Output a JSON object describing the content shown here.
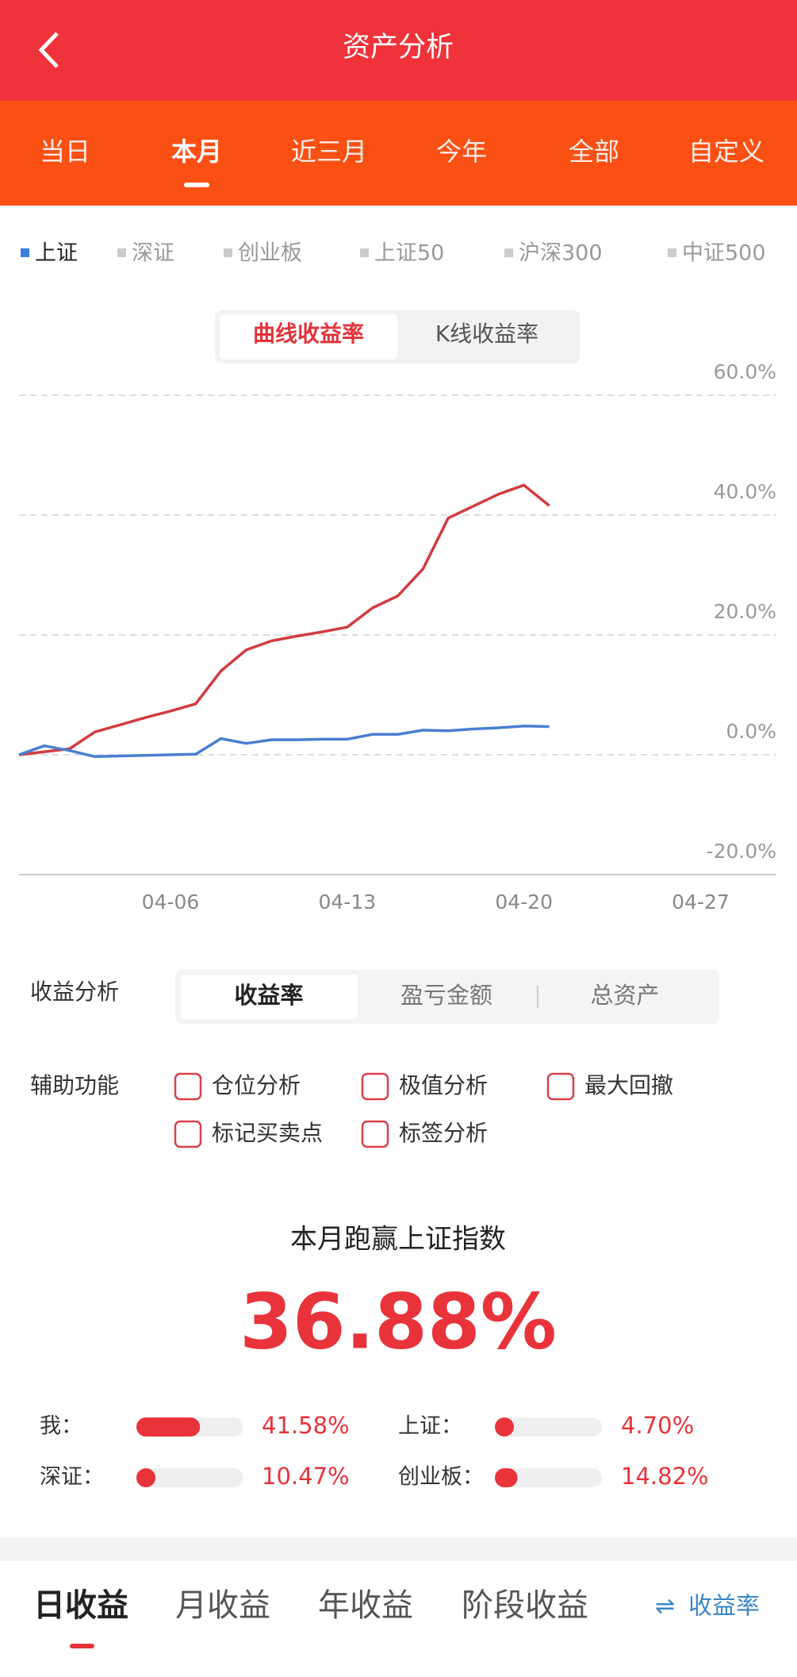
{
  "header": {
    "title": "资产分析"
  },
  "period_tabs": [
    "当日",
    "本月",
    "近三月",
    "今年",
    "全部",
    "自定义"
  ],
  "index_tabs": [
    "上证",
    "深证",
    "创业板",
    "上证50",
    "沪深300",
    "中证500"
  ],
  "chart_modes": [
    "曲线收益率",
    "K线收益率"
  ],
  "chart_data": {
    "type": "line",
    "x": [
      "03-31",
      "04-01",
      "04-02",
      "04-03",
      "04-04",
      "04-05",
      "04-06",
      "04-07",
      "04-08",
      "04-09",
      "04-10",
      "04-11",
      "04-12",
      "04-13",
      "04-14",
      "04-15",
      "04-16",
      "04-17",
      "04-18",
      "04-19",
      "04-20",
      "04-21"
    ],
    "series": [
      {
        "color": "#d23b3f",
        "values": [
          0,
          0.5,
          1,
          3.8,
          5,
          6.2,
          7.3,
          8.5,
          14,
          17.5,
          19,
          19.8,
          20.5,
          21.3,
          24.5,
          26.5,
          31,
          39.5,
          41.5,
          43.5,
          45,
          41.58
        ]
      },
      {
        "color": "#4a7fd0",
        "values": [
          0,
          1.5,
          0.7,
          -0.3,
          -0.2,
          -0.1,
          0,
          0.1,
          2.7,
          1.9,
          2.5,
          2.5,
          2.6,
          2.6,
          3.4,
          3.4,
          4.1,
          4,
          4.3,
          4.5,
          4.8,
          4.7
        ]
      }
    ],
    "xlim": [
      "03-31",
      "04-30"
    ],
    "xticks": [
      "04-06",
      "04-13",
      "04-20",
      "04-27"
    ],
    "ylim": [
      -20,
      60
    ],
    "yticks": [
      {
        "value": -20,
        "label": "-20.0%"
      },
      {
        "value": 0,
        "label": "0.0%"
      },
      {
        "value": 20,
        "label": "20.0%"
      },
      {
        "value": 40,
        "label": "40.0%"
      },
      {
        "value": 60,
        "label": "60.0%"
      }
    ],
    "grid": true
  },
  "analysis": {
    "label": "收益分析",
    "options": [
      "收益率",
      "盈亏金额",
      "总资产"
    ]
  },
  "aux": {
    "label": "辅助功能",
    "options": [
      "仓位分析",
      "极值分析",
      "最大回撤",
      "标记买卖点",
      "标签分析"
    ]
  },
  "summary": {
    "title": "本月跑赢上证指数",
    "value": "36.88%"
  },
  "compare": [
    {
      "name": "我：",
      "value": 41.58,
      "value_label": "41.58%"
    },
    {
      "name": "上证：",
      "value": 4.7,
      "value_label": "4.70%"
    },
    {
      "name": "深证：",
      "value": 10.47,
      "value_label": "10.47%"
    },
    {
      "name": "创业板：",
      "value": 14.82,
      "value_label": "14.82%"
    }
  ],
  "bottom_tabs": [
    "日收益",
    "月收益",
    "年收益",
    "阶段收益"
  ],
  "toggle": "收益率"
}
